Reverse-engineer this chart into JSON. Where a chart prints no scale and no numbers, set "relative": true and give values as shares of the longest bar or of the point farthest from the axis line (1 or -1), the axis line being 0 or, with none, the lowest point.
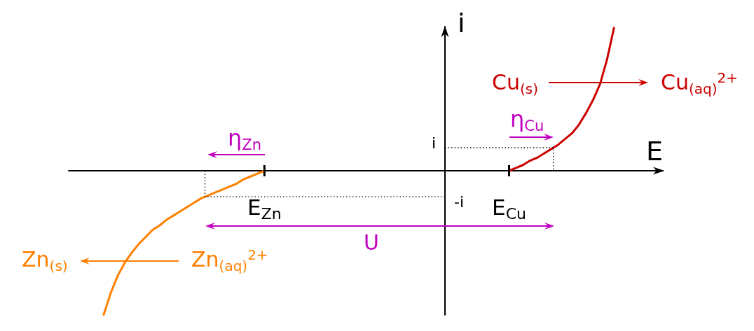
{
  "chart_data": {
    "type": "line",
    "relative": true,
    "xlabel": "E",
    "ylabel": "i",
    "marker": "none",
    "line_style": "solid",
    "categories": [
      null,
      null,
      null,
      null,
      null,
      null,
      null,
      null,
      null,
      null,
      null,
      null,
      null,
      null,
      null,
      null,
      null,
      null,
      null,
      null,
      null,
      null,
      null,
      null,
      null,
      null,
      null,
      null,
      "E$_{Zn}$",
      null,
      null,
      null,
      null,
      null,
      null,
      null,
      null,
      null,
      null,
      null,
      null,
      null,
      null,
      null,
      null,
      null,
      null,
      null,
      null,
      null,
      null,
      null,
      null,
      null,
      null,
      null,
      null,
      null,
      null,
      null,
      null,
      null,
      null,
      "E$_{Cu}$",
      null,
      null,
      null,
      null,
      null,
      null,
      null,
      null,
      null,
      null,
      null,
      null,
      null,
      null,
      null,
      null,
      null,
      null,
      null,
      null,
      null,
      null
    ],
    "series": [
      {
        "color": "#ff8000",
        "values": [
          null,
          null,
          null,
          null,
          null,
          -1,
          -0.85,
          -0.73,
          -0.64,
          -0.57,
          -0.51,
          -0.46,
          -0.41,
          -0.38,
          -0.34,
          -0.31,
          -0.28,
          -0.25,
          -0.22,
          -0.19,
          -0.17,
          -0.15,
          -0.13,
          -0.11,
          -0.09,
          -0.06,
          -0.04,
          -0.02,
          0,
          null,
          null,
          null,
          null,
          null,
          null,
          null,
          null,
          null,
          null,
          null,
          null,
          null,
          null,
          null,
          null,
          null,
          null,
          null,
          null,
          null,
          null,
          null,
          null,
          null,
          null,
          null,
          null,
          null,
          null,
          null,
          null,
          null,
          null,
          null,
          null,
          null,
          null,
          null,
          null,
          null,
          null,
          null,
          null,
          null,
          null,
          null,
          null,
          null,
          null,
          null,
          null,
          null,
          null,
          null,
          null,
          null
        ]
      },
      {
        "color": "#cc0000",
        "values": [
          null,
          null,
          null,
          null,
          null,
          null,
          null,
          null,
          null,
          null,
          null,
          null,
          null,
          null,
          null,
          null,
          null,
          null,
          null,
          null,
          null,
          null,
          null,
          null,
          null,
          null,
          null,
          null,
          null,
          null,
          null,
          null,
          null,
          null,
          null,
          null,
          null,
          null,
          null,
          null,
          null,
          null,
          null,
          null,
          null,
          null,
          null,
          null,
          null,
          null,
          null,
          null,
          null,
          null,
          null,
          null,
          null,
          null,
          null,
          null,
          null,
          null,
          null,
          0,
          0.02,
          0.04,
          0.07,
          0.09,
          0.12,
          0.15,
          0.18,
          0.22,
          0.26,
          0.32,
          0.4,
          0.49,
          0.6,
          0.77,
          0.99,
          null,
          null,
          null,
          null,
          null,
          null,
          null
        ]
      }
    ],
    "ref_lines": [
      {
        "axis": "y",
        "value": 0.16,
        "label": "i",
        "line_style": "dotted",
        "color": "#000000"
      },
      {
        "axis": "y",
        "value": -0.18,
        "label": "-i",
        "line_style": "dotted",
        "color": "#000000"
      }
    ],
    "annotations": [
      "η$_{Zn}$",
      "η$_{Cu}$",
      "U",
      "Cu$_{(s)}$",
      "Cu$_{(aq)}$$^{2+}$",
      "Zn$_{(s)}$",
      "Zn$_{(aq)}$$^{2+}$"
    ]
  }
}
